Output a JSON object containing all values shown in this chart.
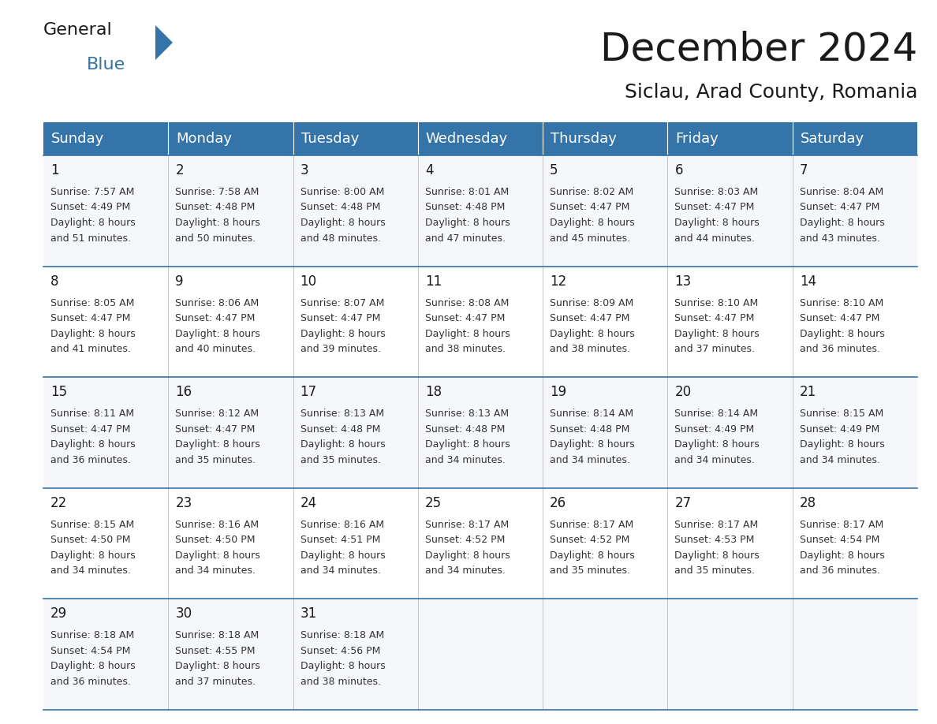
{
  "title": "December 2024",
  "subtitle": "Siclau, Arad County, Romania",
  "header_color": "#3574a8",
  "header_text_color": "#ffffff",
  "bg_color": "#ffffff",
  "day_headers": [
    "Sunday",
    "Monday",
    "Tuesday",
    "Wednesday",
    "Thursday",
    "Friday",
    "Saturday"
  ],
  "days": [
    {
      "day": 1,
      "col": 0,
      "row": 0,
      "sunrise": "7:57 AM",
      "sunset": "4:49 PM",
      "daylight": "8 hours and 51 minutes."
    },
    {
      "day": 2,
      "col": 1,
      "row": 0,
      "sunrise": "7:58 AM",
      "sunset": "4:48 PM",
      "daylight": "8 hours and 50 minutes."
    },
    {
      "day": 3,
      "col": 2,
      "row": 0,
      "sunrise": "8:00 AM",
      "sunset": "4:48 PM",
      "daylight": "8 hours and 48 minutes."
    },
    {
      "day": 4,
      "col": 3,
      "row": 0,
      "sunrise": "8:01 AM",
      "sunset": "4:48 PM",
      "daylight": "8 hours and 47 minutes."
    },
    {
      "day": 5,
      "col": 4,
      "row": 0,
      "sunrise": "8:02 AM",
      "sunset": "4:47 PM",
      "daylight": "8 hours and 45 minutes."
    },
    {
      "day": 6,
      "col": 5,
      "row": 0,
      "sunrise": "8:03 AM",
      "sunset": "4:47 PM",
      "daylight": "8 hours and 44 minutes."
    },
    {
      "day": 7,
      "col": 6,
      "row": 0,
      "sunrise": "8:04 AM",
      "sunset": "4:47 PM",
      "daylight": "8 hours and 43 minutes."
    },
    {
      "day": 8,
      "col": 0,
      "row": 1,
      "sunrise": "8:05 AM",
      "sunset": "4:47 PM",
      "daylight": "8 hours and 41 minutes."
    },
    {
      "day": 9,
      "col": 1,
      "row": 1,
      "sunrise": "8:06 AM",
      "sunset": "4:47 PM",
      "daylight": "8 hours and 40 minutes."
    },
    {
      "day": 10,
      "col": 2,
      "row": 1,
      "sunrise": "8:07 AM",
      "sunset": "4:47 PM",
      "daylight": "8 hours and 39 minutes."
    },
    {
      "day": 11,
      "col": 3,
      "row": 1,
      "sunrise": "8:08 AM",
      "sunset": "4:47 PM",
      "daylight": "8 hours and 38 minutes."
    },
    {
      "day": 12,
      "col": 4,
      "row": 1,
      "sunrise": "8:09 AM",
      "sunset": "4:47 PM",
      "daylight": "8 hours and 38 minutes."
    },
    {
      "day": 13,
      "col": 5,
      "row": 1,
      "sunrise": "8:10 AM",
      "sunset": "4:47 PM",
      "daylight": "8 hours and 37 minutes."
    },
    {
      "day": 14,
      "col": 6,
      "row": 1,
      "sunrise": "8:10 AM",
      "sunset": "4:47 PM",
      "daylight": "8 hours and 36 minutes."
    },
    {
      "day": 15,
      "col": 0,
      "row": 2,
      "sunrise": "8:11 AM",
      "sunset": "4:47 PM",
      "daylight": "8 hours and 36 minutes."
    },
    {
      "day": 16,
      "col": 1,
      "row": 2,
      "sunrise": "8:12 AM",
      "sunset": "4:47 PM",
      "daylight": "8 hours and 35 minutes."
    },
    {
      "day": 17,
      "col": 2,
      "row": 2,
      "sunrise": "8:13 AM",
      "sunset": "4:48 PM",
      "daylight": "8 hours and 35 minutes."
    },
    {
      "day": 18,
      "col": 3,
      "row": 2,
      "sunrise": "8:13 AM",
      "sunset": "4:48 PM",
      "daylight": "8 hours and 34 minutes."
    },
    {
      "day": 19,
      "col": 4,
      "row": 2,
      "sunrise": "8:14 AM",
      "sunset": "4:48 PM",
      "daylight": "8 hours and 34 minutes."
    },
    {
      "day": 20,
      "col": 5,
      "row": 2,
      "sunrise": "8:14 AM",
      "sunset": "4:49 PM",
      "daylight": "8 hours and 34 minutes."
    },
    {
      "day": 21,
      "col": 6,
      "row": 2,
      "sunrise": "8:15 AM",
      "sunset": "4:49 PM",
      "daylight": "8 hours and 34 minutes."
    },
    {
      "day": 22,
      "col": 0,
      "row": 3,
      "sunrise": "8:15 AM",
      "sunset": "4:50 PM",
      "daylight": "8 hours and 34 minutes."
    },
    {
      "day": 23,
      "col": 1,
      "row": 3,
      "sunrise": "8:16 AM",
      "sunset": "4:50 PM",
      "daylight": "8 hours and 34 minutes."
    },
    {
      "day": 24,
      "col": 2,
      "row": 3,
      "sunrise": "8:16 AM",
      "sunset": "4:51 PM",
      "daylight": "8 hours and 34 minutes."
    },
    {
      "day": 25,
      "col": 3,
      "row": 3,
      "sunrise": "8:17 AM",
      "sunset": "4:52 PM",
      "daylight": "8 hours and 34 minutes."
    },
    {
      "day": 26,
      "col": 4,
      "row": 3,
      "sunrise": "8:17 AM",
      "sunset": "4:52 PM",
      "daylight": "8 hours and 35 minutes."
    },
    {
      "day": 27,
      "col": 5,
      "row": 3,
      "sunrise": "8:17 AM",
      "sunset": "4:53 PM",
      "daylight": "8 hours and 35 minutes."
    },
    {
      "day": 28,
      "col": 6,
      "row": 3,
      "sunrise": "8:17 AM",
      "sunset": "4:54 PM",
      "daylight": "8 hours and 36 minutes."
    },
    {
      "day": 29,
      "col": 0,
      "row": 4,
      "sunrise": "8:18 AM",
      "sunset": "4:54 PM",
      "daylight": "8 hours and 36 minutes."
    },
    {
      "day": 30,
      "col": 1,
      "row": 4,
      "sunrise": "8:18 AM",
      "sunset": "4:55 PM",
      "daylight": "8 hours and 37 minutes."
    },
    {
      "day": 31,
      "col": 2,
      "row": 4,
      "sunrise": "8:18 AM",
      "sunset": "4:56 PM",
      "daylight": "8 hours and 38 minutes."
    }
  ],
  "logo_general_color": "#1a1a1a",
  "logo_blue_color": "#3574a8",
  "logo_triangle_color": "#3574a8",
  "title_fontsize": 36,
  "subtitle_fontsize": 18,
  "header_fontsize": 13,
  "day_num_fontsize": 12,
  "cell_text_fontsize": 9,
  "separator_color": "#3574a8",
  "cell_line_color": "#bbbbbb"
}
